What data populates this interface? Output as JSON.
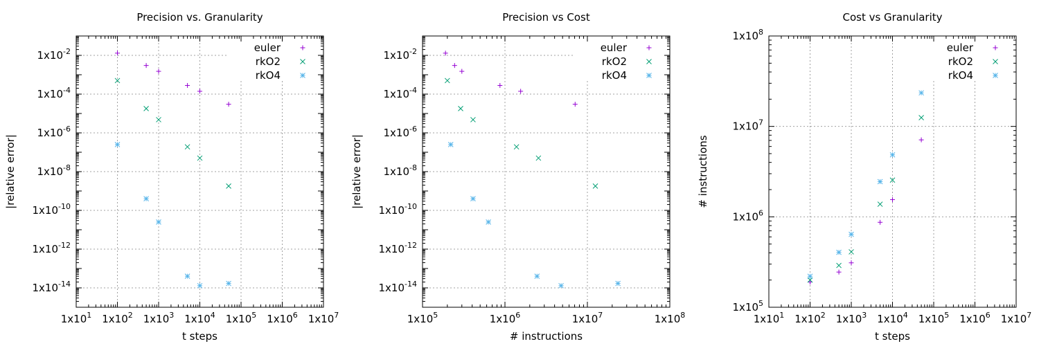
{
  "chart_data": [
    {
      "type": "scatter",
      "title": "Precision vs. Granularity",
      "xlabel": "t steps",
      "ylabel": "|relative error|",
      "xscale": "log",
      "yscale": "log",
      "xlim": [
        10,
        10000000
      ],
      "ylim": [
        1e-15,
        0.1
      ],
      "grid": true,
      "legend_position": "top-right",
      "x_ticks": [
        {
          "value": 10,
          "mant": "1x10",
          "exp": "1"
        },
        {
          "value": 100,
          "mant": "1x10",
          "exp": "2"
        },
        {
          "value": 1000,
          "mant": "1x10",
          "exp": "3"
        },
        {
          "value": 10000,
          "mant": "1x10",
          "exp": "4"
        },
        {
          "value": 100000,
          "mant": "1x10",
          "exp": "5"
        },
        {
          "value": 1000000,
          "mant": "1x10",
          "exp": "6"
        },
        {
          "value": 10000000,
          "mant": "1x10",
          "exp": "7"
        }
      ],
      "y_ticks": [
        {
          "value": 0.01,
          "mant": "1x10",
          "exp": "-2"
        },
        {
          "value": 0.0001,
          "mant": "1x10",
          "exp": "-4"
        },
        {
          "value": 1e-06,
          "mant": "1x10",
          "exp": "-6"
        },
        {
          "value": 1e-08,
          "mant": "1x10",
          "exp": "-8"
        },
        {
          "value": 1e-10,
          "mant": "1x10",
          "exp": "-10"
        },
        {
          "value": 1e-12,
          "mant": "1x10",
          "exp": "-12"
        },
        {
          "value": 1e-14,
          "mant": "1x10",
          "exp": "-14"
        }
      ],
      "series": [
        {
          "name": "euler",
          "marker": "plus",
          "color": "#9400d3",
          "points": [
            [
              100,
              0.013
            ],
            [
              500,
              0.003
            ],
            [
              1000,
              0.0015
            ],
            [
              5000,
              0.00028
            ],
            [
              10000,
              0.00014
            ],
            [
              50000,
              3e-05
            ]
          ]
        },
        {
          "name": "rkO2",
          "marker": "cross",
          "color": "#009e73",
          "points": [
            [
              100,
              0.0005
            ],
            [
              500,
              1.8e-05
            ],
            [
              1000,
              4.8e-06
            ],
            [
              5000,
              1.9e-07
            ],
            [
              10000,
              5e-08
            ],
            [
              50000,
              1.8e-09
            ]
          ]
        },
        {
          "name": "rkO4",
          "marker": "star",
          "color": "#56b4e9",
          "points": [
            [
              100,
              2.5e-07
            ],
            [
              500,
              4e-10
            ],
            [
              1000,
              2.5e-11
            ],
            [
              5000,
              4e-14
            ],
            [
              10000,
              1.3e-14
            ],
            [
              50000,
              1.7e-14
            ]
          ]
        }
      ]
    },
    {
      "type": "scatter",
      "title": "Precision vs Cost",
      "xlabel": "# instructions",
      "ylabel": "|relative error|",
      "xscale": "log",
      "yscale": "log",
      "xlim": [
        100000,
        100000000
      ],
      "ylim": [
        1e-15,
        0.1
      ],
      "grid": true,
      "legend_position": "top-right",
      "x_ticks": [
        {
          "value": 100000,
          "mant": "1x10",
          "exp": "5"
        },
        {
          "value": 1000000,
          "mant": "1x10",
          "exp": "6"
        },
        {
          "value": 10000000,
          "mant": "1x10",
          "exp": "7"
        },
        {
          "value": 100000000,
          "mant": "1x10",
          "exp": "8"
        }
      ],
      "y_ticks": [
        {
          "value": 0.01,
          "mant": "1x10",
          "exp": "-2"
        },
        {
          "value": 0.0001,
          "mant": "1x10",
          "exp": "-4"
        },
        {
          "value": 1e-06,
          "mant": "1x10",
          "exp": "-6"
        },
        {
          "value": 1e-08,
          "mant": "1x10",
          "exp": "-8"
        },
        {
          "value": 1e-10,
          "mant": "1x10",
          "exp": "-10"
        },
        {
          "value": 1e-12,
          "mant": "1x10",
          "exp": "-12"
        },
        {
          "value": 1e-14,
          "mant": "1x10",
          "exp": "-14"
        }
      ],
      "series": [
        {
          "name": "euler",
          "marker": "plus",
          "color": "#9400d3",
          "points": [
            [
              190000,
              0.013
            ],
            [
              245000,
              0.003
            ],
            [
              300000,
              0.0015
            ],
            [
              870000,
              0.00028
            ],
            [
              1550000,
              0.00014
            ],
            [
              7100000,
              3e-05
            ]
          ]
        },
        {
          "name": "rkO2",
          "marker": "cross",
          "color": "#009e73",
          "points": [
            [
              200000,
              0.0005
            ],
            [
              290000,
              1.8e-05
            ],
            [
              410000,
              4.8e-06
            ],
            [
              1380000,
              1.9e-07
            ],
            [
              2550000,
              5e-08
            ],
            [
              12500000,
              1.8e-09
            ]
          ]
        },
        {
          "name": "rkO4",
          "marker": "star",
          "color": "#56b4e9",
          "points": [
            [
              220000,
              2.5e-07
            ],
            [
              410000,
              4e-10
            ],
            [
              630000,
              2.5e-11
            ],
            [
              2450000,
              4e-14
            ],
            [
              4800000,
              1.3e-14
            ],
            [
              23500000,
              1.7e-14
            ]
          ]
        }
      ]
    },
    {
      "type": "scatter",
      "title": "Cost vs Granularity",
      "xlabel": "t steps",
      "ylabel": "# instructions",
      "xscale": "log",
      "yscale": "log",
      "xlim": [
        10,
        10000000
      ],
      "ylim": [
        100000,
        100000000
      ],
      "grid": true,
      "legend_position": "top-right",
      "x_ticks": [
        {
          "value": 10,
          "mant": "1x10",
          "exp": "1"
        },
        {
          "value": 100,
          "mant": "1x10",
          "exp": "2"
        },
        {
          "value": 1000,
          "mant": "1x10",
          "exp": "3"
        },
        {
          "value": 10000,
          "mant": "1x10",
          "exp": "4"
        },
        {
          "value": 100000,
          "mant": "1x10",
          "exp": "5"
        },
        {
          "value": 1000000,
          "mant": "1x10",
          "exp": "6"
        },
        {
          "value": 10000000,
          "mant": "1x10",
          "exp": "7"
        }
      ],
      "y_ticks": [
        {
          "value": 100000,
          "mant": "1x10",
          "exp": "5"
        },
        {
          "value": 1000000,
          "mant": "1x10",
          "exp": "6"
        },
        {
          "value": 10000000,
          "mant": "1x10",
          "exp": "7"
        },
        {
          "value": 100000000,
          "mant": "1x10",
          "exp": "8"
        }
      ],
      "series": [
        {
          "name": "euler",
          "marker": "plus",
          "color": "#9400d3",
          "points": [
            [
              100,
              190000
            ],
            [
              500,
              245000
            ],
            [
              1000,
              310000
            ],
            [
              5000,
              870000
            ],
            [
              10000,
              1550000
            ],
            [
              50000,
              7100000
            ]
          ]
        },
        {
          "name": "rkO2",
          "marker": "cross",
          "color": "#009e73",
          "points": [
            [
              100,
              200000
            ],
            [
              500,
              290000
            ],
            [
              1000,
              410000
            ],
            [
              5000,
              1380000
            ],
            [
              10000,
              2550000
            ],
            [
              50000,
              12500000
            ]
          ]
        },
        {
          "name": "rkO4",
          "marker": "star",
          "color": "#56b4e9",
          "points": [
            [
              100,
              220000
            ],
            [
              500,
              405000
            ],
            [
              1000,
              640000
            ],
            [
              5000,
              2450000
            ],
            [
              10000,
              4850000
            ],
            [
              50000,
              23500000
            ]
          ]
        }
      ]
    }
  ]
}
